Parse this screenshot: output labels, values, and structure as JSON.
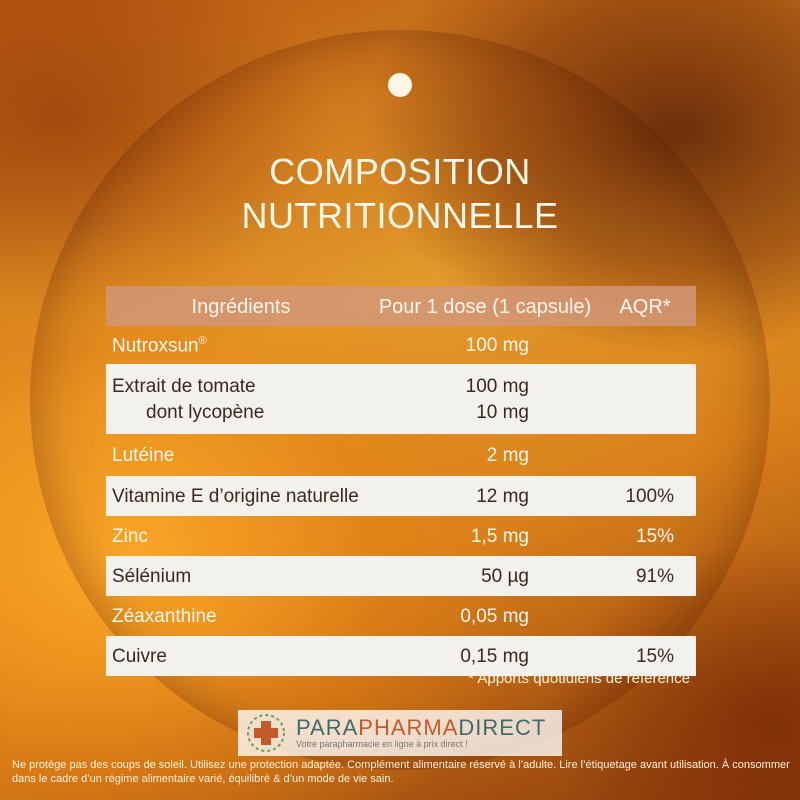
{
  "title": {
    "line1": "COMPOSITION",
    "line2": "NUTRITIONNELLE"
  },
  "table": {
    "headers": [
      "Ingrédients",
      "Pour 1 dose (1 capsule)",
      "AQR*"
    ],
    "rows": [
      {
        "name": "Nutroxsun",
        "sup": "®",
        "dose": "100 mg",
        "aqr": ""
      },
      {
        "name": "Extrait de tomate",
        "dose": "100 mg",
        "aqr": "",
        "sub_name": "dont lycopène",
        "sub_dose": "10 mg"
      },
      {
        "name": "Lutéine",
        "dose": "2 mg",
        "aqr": ""
      },
      {
        "name": "Vitamine E d’origine naturelle",
        "dose": "12 mg",
        "aqr": "100%"
      },
      {
        "name": "Zinc",
        "dose": "1,5 mg",
        "aqr": "15%"
      },
      {
        "name": "Sélénium",
        "dose": "50 µg",
        "aqr": "91%"
      },
      {
        "name": "Zéaxanthine",
        "dose": "0,05 mg",
        "aqr": ""
      },
      {
        "name": "Cuivre",
        "dose": "0,15 mg",
        "aqr": "15%"
      }
    ]
  },
  "footnote": "* Apports quotidiens de référence",
  "logo": {
    "part1": "PARA",
    "part2": "PHARMA",
    "part3": "DIRECT",
    "tagline": "Votre parapharmacie en ligne à prix direct !"
  },
  "disclaimer": "Ne protège pas des coups de soleil. Utilisez une protection adaptée. Complément alimentaire réservé à l’adulte. Lire l’étiquetage avant utilisation. À consommer dans le cadre d’un régime alimentaire varié, équilibré & d’un mode de vie sain.",
  "colors": {
    "background": "#d9801a",
    "header_row": "#d2967a",
    "white_row": "#f3f1ee",
    "text_light": "#fff6ec",
    "text_dark": "#3a2a1e"
  }
}
